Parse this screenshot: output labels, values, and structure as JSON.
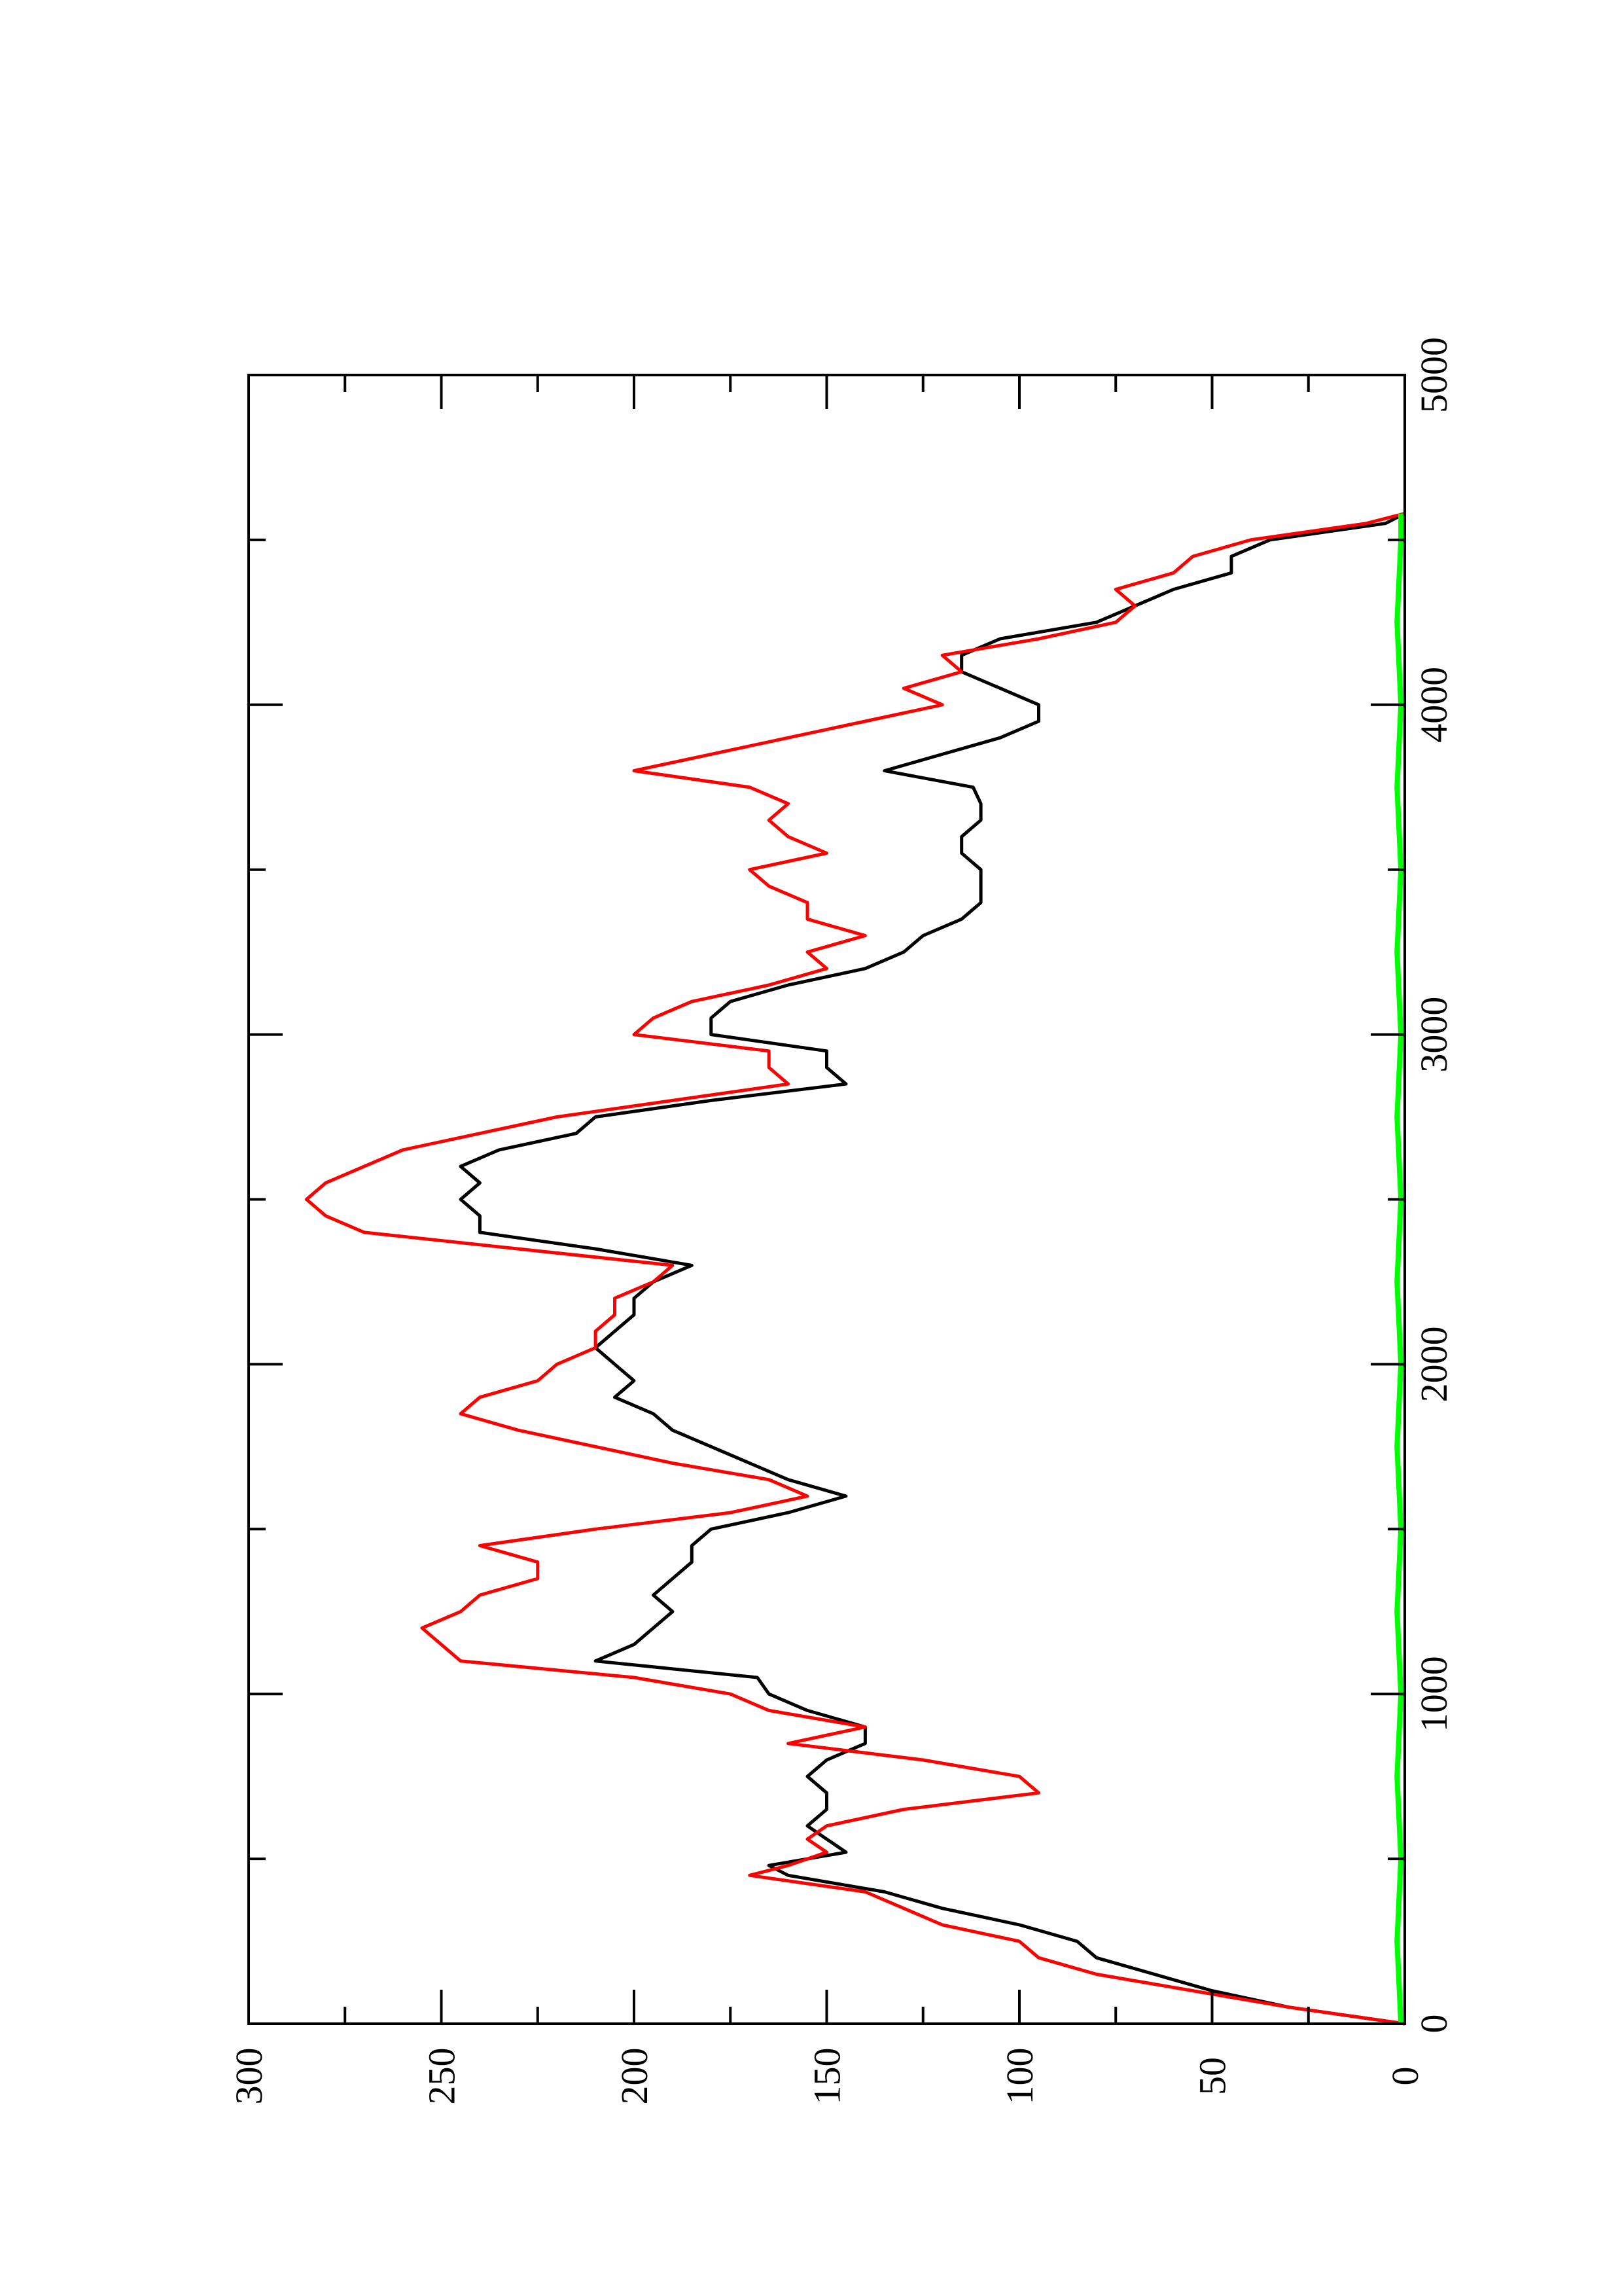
{
  "chart_data": {
    "type": "line",
    "orientation": "rotated-90-clockwise",
    "title": "",
    "xlabel": "",
    "ylabel": "",
    "xlim": [
      0,
      5000
    ],
    "ylim": [
      0,
      300
    ],
    "x_ticks": [
      0,
      1000,
      2000,
      3000,
      4000,
      5000
    ],
    "x_tick_labels": [
      "0",
      "1000",
      "2000",
      "3000",
      "4000",
      "5000"
    ],
    "x_minor_ticks": [
      500,
      1500,
      2500,
      3500,
      4500
    ],
    "y_ticks": [
      0,
      50,
      100,
      150,
      200,
      250,
      300
    ],
    "y_tick_labels": [
      "0",
      "50",
      "100",
      "150",
      "200",
      "250",
      "300"
    ],
    "y_minor_ticks": [
      25,
      75,
      125,
      175,
      225,
      275
    ],
    "grid": false,
    "legend": "none",
    "series": [
      {
        "color": "#000000",
        "x": [
          0,
          50,
          100,
          150,
          200,
          250,
          300,
          350,
          400,
          450,
          480,
          520,
          560,
          600,
          650,
          700,
          750,
          800,
          850,
          900,
          950,
          1000,
          1050,
          1100,
          1150,
          1200,
          1250,
          1300,
          1350,
          1400,
          1450,
          1500,
          1550,
          1600,
          1650,
          1700,
          1750,
          1800,
          1850,
          1900,
          1950,
          2000,
          2050,
          2100,
          2150,
          2200,
          2250,
          2300,
          2350,
          2400,
          2450,
          2500,
          2550,
          2600,
          2650,
          2700,
          2750,
          2800,
          2850,
          2900,
          2950,
          3000,
          3050,
          3100,
          3150,
          3200,
          3250,
          3300,
          3350,
          3400,
          3450,
          3500,
          3550,
          3600,
          3650,
          3700,
          3750,
          3800,
          3850,
          3900,
          3950,
          4000,
          4050,
          4100,
          4150,
          4200,
          4250,
          4300,
          4350,
          4400,
          4450,
          4500,
          4550,
          4580
        ],
        "y": [
          0,
          30,
          50,
          65,
          80,
          85,
          100,
          120,
          135,
          160,
          165,
          145,
          150,
          155,
          150,
          150,
          155,
          150,
          140,
          140,
          155,
          165,
          168,
          210,
          200,
          195,
          190,
          195,
          190,
          185,
          185,
          180,
          160,
          145,
          160,
          170,
          180,
          190,
          195,
          205,
          200,
          205,
          210,
          205,
          200,
          200,
          195,
          185,
          210,
          240,
          240,
          245,
          240,
          245,
          235,
          215,
          210,
          180,
          145,
          150,
          150,
          180,
          180,
          175,
          160,
          140,
          130,
          125,
          115,
          110,
          110,
          110,
          115,
          115,
          110,
          110,
          112,
          135,
          120,
          105,
          95,
          95,
          105,
          115,
          115,
          105,
          80,
          70,
          60,
          45,
          45,
          35,
          5,
          0
        ]
      },
      {
        "color": "#ff0000",
        "x": [
          0,
          50,
          100,
          150,
          200,
          250,
          300,
          350,
          400,
          450,
          480,
          520,
          560,
          600,
          650,
          700,
          750,
          800,
          850,
          900,
          950,
          1000,
          1050,
          1100,
          1150,
          1200,
          1250,
          1300,
          1350,
          1400,
          1450,
          1500,
          1550,
          1600,
          1650,
          1700,
          1750,
          1800,
          1850,
          1900,
          1950,
          2000,
          2050,
          2100,
          2150,
          2200,
          2250,
          2300,
          2350,
          2400,
          2450,
          2500,
          2550,
          2600,
          2650,
          2700,
          2750,
          2800,
          2850,
          2900,
          2950,
          3000,
          3050,
          3100,
          3150,
          3200,
          3250,
          3300,
          3350,
          3400,
          3450,
          3500,
          3550,
          3600,
          3650,
          3700,
          3750,
          3800,
          3850,
          3900,
          3950,
          4000,
          4050,
          4100,
          4150,
          4200,
          4250,
          4300,
          4350,
          4400,
          4450,
          4500,
          4550,
          4580
        ],
        "y": [
          0,
          30,
          55,
          80,
          95,
          100,
          120,
          130,
          140,
          170,
          160,
          150,
          155,
          150,
          130,
          95,
          100,
          125,
          160,
          140,
          165,
          175,
          200,
          245,
          250,
          255,
          245,
          240,
          225,
          225,
          240,
          210,
          175,
          155,
          165,
          190,
          210,
          230,
          245,
          240,
          225,
          220,
          210,
          210,
          205,
          205,
          195,
          190,
          230,
          270,
          280,
          285,
          280,
          270,
          260,
          240,
          220,
          190,
          160,
          165,
          165,
          200,
          195,
          185,
          165,
          150,
          155,
          140,
          155,
          155,
          165,
          170,
          150,
          160,
          165,
          160,
          170,
          200,
          180,
          160,
          140,
          120,
          130,
          115,
          120,
          95,
          75,
          70,
          75,
          60,
          55,
          40,
          10,
          0
        ]
      },
      {
        "color": "#00ff00",
        "x": [
          0,
          250,
          500,
          750,
          1000,
          1250,
          1500,
          1750,
          2000,
          2250,
          2500,
          2750,
          3000,
          3250,
          3500,
          3750,
          4000,
          4250,
          4500,
          4580
        ],
        "y": [
          1,
          2,
          1,
          2,
          1,
          2,
          1,
          2,
          1,
          2,
          1,
          2,
          1,
          2,
          1,
          2,
          1,
          2,
          1,
          1
        ]
      }
    ]
  }
}
